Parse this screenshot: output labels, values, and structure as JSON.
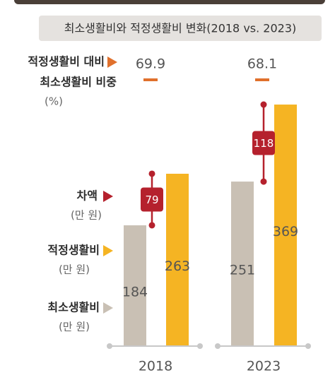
{
  "chart_data": {
    "type": "bar",
    "title": "최소생활비와 적정생활비 변화(2018 vs. 2023)",
    "categories": [
      "2018",
      "2023"
    ],
    "series": [
      {
        "name": "최소생활비",
        "unit": "(만 원)",
        "color": "#c9c0b4",
        "values": [
          184,
          251
        ]
      },
      {
        "name": "적정생활비",
        "unit": "(만 원)",
        "color": "#f5b423",
        "values": [
          263,
          369
        ]
      }
    ],
    "difference": {
      "name": "차액",
      "unit": "(만 원)",
      "color": "#b5212d",
      "values": [
        79,
        118
      ]
    },
    "ratio": {
      "label": [
        "적정생활비 대비",
        "최소생활비 비중"
      ],
      "unit": "(%)",
      "color": "#e0702c",
      "values": [
        69.9,
        68.1
      ]
    }
  }
}
